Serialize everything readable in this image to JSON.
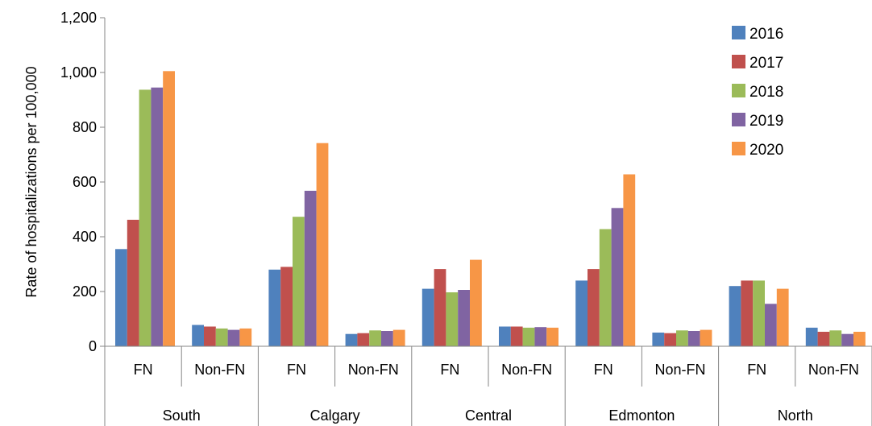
{
  "chart_data": {
    "type": "bar",
    "title": "",
    "ylabel": "Rate of hospitalizations per 100,000",
    "xlabel": "",
    "ylim": [
      0,
      1200
    ],
    "y_ticks": [
      0,
      200,
      400,
      600,
      800,
      1000,
      1200
    ],
    "y_tick_labels": [
      "0",
      "200",
      "400",
      "600",
      "800",
      "1,000",
      "1,200"
    ],
    "groups": [
      "South",
      "Calgary",
      "Central",
      "Edmonton",
      "North"
    ],
    "subgroups": [
      "FN",
      "Non-FN"
    ],
    "categories": [
      "South FN",
      "South Non-FN",
      "Calgary FN",
      "Calgary Non-FN",
      "Central FN",
      "Central Non-FN",
      "Edmonton FN",
      "Edmonton Non-FN",
      "North FN",
      "North Non-FN"
    ],
    "legend_position": "top-right",
    "gridlines": false,
    "series": [
      {
        "name": "2016",
        "color": "#4F81BD",
        "values": [
          355,
          78,
          280,
          45,
          210,
          72,
          240,
          50,
          220,
          68
        ]
      },
      {
        "name": "2017",
        "color": "#C0504D",
        "values": [
          462,
          72,
          290,
          48,
          282,
          72,
          282,
          48,
          240,
          53
        ]
      },
      {
        "name": "2018",
        "color": "#9BBB59",
        "values": [
          937,
          65,
          473,
          58,
          197,
          68,
          428,
          58,
          240,
          58
        ]
      },
      {
        "name": "2019",
        "color": "#8064A2",
        "values": [
          945,
          60,
          568,
          56,
          206,
          70,
          505,
          56,
          155,
          45
        ]
      },
      {
        "name": "2020",
        "color": "#F79646",
        "values": [
          1005,
          65,
          742,
          60,
          316,
          68,
          628,
          60,
          210,
          53
        ]
      }
    ]
  }
}
